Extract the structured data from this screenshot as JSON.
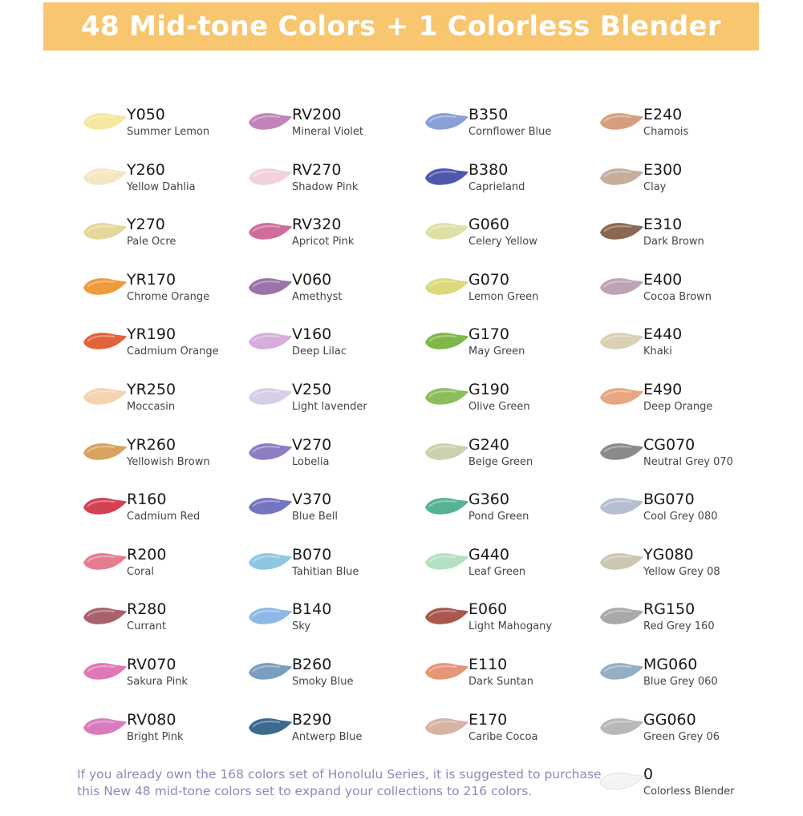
{
  "header": {
    "title": "48 Mid-tone Colors + 1 Colorless Blender"
  },
  "columns": [
    [
      {
        "code": "Y050",
        "name": "Summer Lemon",
        "color": "#f5e6a0"
      },
      {
        "code": "Y260",
        "name": "Yellow Dahlia",
        "color": "#f3e7c4"
      },
      {
        "code": "Y270",
        "name": "Pale Ocre",
        "color": "#e4d79b"
      },
      {
        "code": "YR170",
        "name": "Chrome Orange",
        "color": "#ee9b3c"
      },
      {
        "code": "YR190",
        "name": "Cadmium Orange",
        "color": "#e0633a"
      },
      {
        "code": "YR250",
        "name": "Moccasin",
        "color": "#f4d3b0"
      },
      {
        "code": "YR260",
        "name": "Yellowish Brown",
        "color": "#d8a25f"
      },
      {
        "code": "R160",
        "name": "Cadmium Red",
        "color": "#d34252"
      },
      {
        "code": "R200",
        "name": "Coral",
        "color": "#e47d90"
      },
      {
        "code": "R280",
        "name": "Currant",
        "color": "#a8626e"
      },
      {
        "code": "RV070",
        "name": "Sakura Pink",
        "color": "#e078b6"
      },
      {
        "code": "RV080",
        "name": "Bright Pink",
        "color": "#d97cbd"
      }
    ],
    [
      {
        "code": "RV200",
        "name": "Mineral Violet",
        "color": "#c184ba"
      },
      {
        "code": "RV270",
        "name": "Shadow Pink",
        "color": "#f2d2dc"
      },
      {
        "code": "RV320",
        "name": "Apricot Pink",
        "color": "#cf6e9c"
      },
      {
        "code": "V060",
        "name": "Amethyst",
        "color": "#9a74a8"
      },
      {
        "code": "V160",
        "name": "Deep Lilac",
        "color": "#d5aedb"
      },
      {
        "code": "V250",
        "name": "Light lavender",
        "color": "#d6cde6"
      },
      {
        "code": "V270",
        "name": "Lobelia",
        "color": "#8d7ec2"
      },
      {
        "code": "V370",
        "name": "Blue Bell",
        "color": "#7474c0"
      },
      {
        "code": "B070",
        "name": "Tahitian Blue",
        "color": "#8fc6e2"
      },
      {
        "code": "B140",
        "name": "Sky",
        "color": "#8eb9e6"
      },
      {
        "code": "B260",
        "name": "Smoky Blue",
        "color": "#7b9dc0"
      },
      {
        "code": "B290",
        "name": "Antwerp Blue",
        "color": "#3c6a8f"
      }
    ],
    [
      {
        "code": "B350",
        "name": "Cornflower Blue",
        "color": "#8b9fd8"
      },
      {
        "code": "B380",
        "name": "Caprieland",
        "color": "#4d58ad"
      },
      {
        "code": "G060",
        "name": "Celery Yellow",
        "color": "#dfe0a6"
      },
      {
        "code": "G070",
        "name": "Lemon Green",
        "color": "#dcd97b"
      },
      {
        "code": "G170",
        "name": "May Green",
        "color": "#7fb848"
      },
      {
        "code": "G190",
        "name": "Olive Green",
        "color": "#8cbd5b"
      },
      {
        "code": "G240",
        "name": "Beige Green",
        "color": "#c9d2ac"
      },
      {
        "code": "G360",
        "name": "Pond Green",
        "color": "#55b393"
      },
      {
        "code": "G440",
        "name": "Leaf Green",
        "color": "#b6e0c2"
      },
      {
        "code": "E060",
        "name": "Light Mahogany",
        "color": "#a8584f"
      },
      {
        "code": "E110",
        "name": "Dark Suntan",
        "color": "#e49678"
      },
      {
        "code": "E170",
        "name": "Caribe Cocoa",
        "color": "#d7b3a4"
      }
    ],
    [
      {
        "code": "E240",
        "name": "Chamois",
        "color": "#d59e7f"
      },
      {
        "code": "E300",
        "name": "Clay",
        "color": "#c6ae9c"
      },
      {
        "code": "E310",
        "name": "Dark Brown",
        "color": "#8a6750"
      },
      {
        "code": "E400",
        "name": "Cocoa Brown",
        "color": "#bda4b3"
      },
      {
        "code": "E440",
        "name": "Khaki",
        "color": "#dccfb3"
      },
      {
        "code": "E490",
        "name": "Deep Orange",
        "color": "#e7a780"
      },
      {
        "code": "CG070",
        "name": "Neutral Grey 070",
        "color": "#8a8a8a"
      },
      {
        "code": "BG070",
        "name": "Cool Grey 080",
        "color": "#b6bed0"
      },
      {
        "code": "YG080",
        "name": "Yellow Grey 08",
        "color": "#cbc7b4"
      },
      {
        "code": "RG150",
        "name": "Red Grey 160",
        "color": "#a9a9ab"
      },
      {
        "code": "MG060",
        "name": "Blue Grey 060",
        "color": "#95aec3"
      },
      {
        "code": "GG060",
        "name": "Green Grey 06",
        "color": "#b8b8b6"
      },
      {
        "code": "0",
        "name": "Colorless Blender",
        "color": "#f4f4f4"
      }
    ]
  ],
  "footnote": {
    "line1": "If you already own the 168 colors set of Honolulu Series, it is suggested to purchase",
    "line2": "this New 48 mid-tone colors set to expand your collections to 216 colors."
  }
}
